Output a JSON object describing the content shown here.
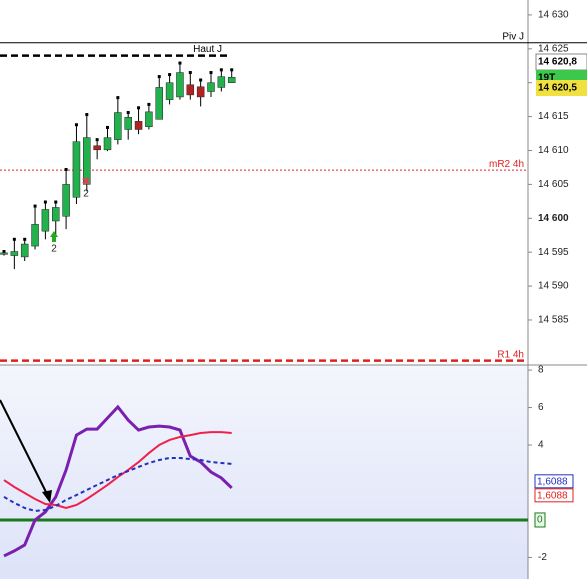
{
  "chart_data": [
    {
      "type": "candlestick",
      "up_color": "#22b14c",
      "down_color": "#b22222",
      "open": [
        14594.9,
        14594.5,
        14594.3,
        14595.9,
        14598.1,
        14599.6,
        14600.3,
        14603.1,
        14605,
        14610.7,
        14610.1,
        14611.6,
        14613.1,
        14614.3,
        14613.5,
        14614.6,
        14617.5,
        14617.9,
        14619.7,
        14619.4,
        14618.7,
        14619.3,
        14620
      ],
      "high": [
        14595.1,
        14596.9,
        14596.9,
        14601.8,
        14602.4,
        14602.4,
        14607.2,
        14613.8,
        14615.3,
        14611.6,
        14613.4,
        14617.8,
        14615.6,
        14616.3,
        14616.8,
        14620.9,
        14621.2,
        14622.9,
        14621.5,
        14620.4,
        14621.5,
        14621.9,
        14621.9
      ],
      "low": [
        14594.5,
        14592.5,
        14593.7,
        14595.4,
        14596.9,
        14597.6,
        14598.4,
        14602.1,
        14604,
        14608.7,
        14609.9,
        14610.9,
        14611.6,
        14612.4,
        14613.1,
        14614.6,
        14616.8,
        14617.5,
        14617.5,
        14616.5,
        14617.9,
        14618.7,
        14620
      ],
      "close": [
        14594.9,
        14595.1,
        14596.2,
        14599.1,
        14601.3,
        14601.6,
        14605,
        14611.3,
        14611.9,
        14610.1,
        14611.9,
        14615.6,
        14614.9,
        14613.1,
        14615.7,
        14619.3,
        14620,
        14621.5,
        14618.2,
        14617.9,
        14620,
        14620.9,
        14620.8
      ],
      "ylim": [
        14578.8,
        14632.2
      ],
      "yticks": [
        {
          "value": 14585,
          "label": "14 585"
        },
        {
          "value": 14590,
          "label": "14 590"
        },
        {
          "value": 14595,
          "label": "14 595"
        },
        {
          "value": 14600,
          "label": "14 600",
          "bold": true
        },
        {
          "value": 14605,
          "label": "14 605"
        },
        {
          "value": 14610,
          "label": "14 610"
        },
        {
          "value": 14615,
          "label": "14 615"
        },
        {
          "value": 14620,
          "label": "14 620"
        },
        {
          "value": 14625,
          "label": "14 625"
        },
        {
          "value": 14630,
          "label": "14 630"
        }
      ],
      "levels": [
        {
          "label": "Piv J",
          "value": 14625.9,
          "color": "#000000",
          "style": "solid"
        },
        {
          "label": "Haut J",
          "value": 14624,
          "color": "#000000",
          "style": "dashed"
        },
        {
          "label": "mR2 4h",
          "value": 14607.1,
          "color": "#e02020",
          "style": "dotted"
        },
        {
          "label": "R1 4h",
          "value": 14579,
          "color": "#e02020",
          "style": "dashed"
        }
      ],
      "annotations": [
        "2",
        "2"
      ],
      "price_tags": [
        {
          "value": 14620.8,
          "label": "14 620,8",
          "color": "#ffffff"
        },
        {
          "label": "19T",
          "color": "#3cc84a"
        },
        {
          "value": 14620.5,
          "label": "14 620,5",
          "color": "#f0e040"
        }
      ]
    },
    {
      "type": "line",
      "series": [
        {
          "color": "#7a20b0",
          "values": [
            -1.92,
            -1.65,
            -1.33,
            0,
            0.43,
            1.23,
            2.67,
            4.53,
            4.85,
            4.85,
            5.44,
            6.03,
            5.33,
            4.8,
            4.96,
            5.01,
            4.96,
            4.8,
            3.41,
            3.09,
            2.56,
            2.24,
            1.71
          ]
        },
        {
          "color": "#f0204a",
          "values": [
            2.13,
            1.76,
            1.44,
            1.12,
            0.85,
            0.8,
            0.64,
            0.8,
            1.12,
            1.49,
            1.87,
            2.29,
            2.67,
            3.09,
            3.57,
            4.0,
            4.27,
            4.43,
            4.53,
            4.64,
            4.69,
            4.69,
            4.64
          ]
        },
        {
          "color": "#2030c0",
          "dashed": true,
          "values": [
            1.23,
            0.91,
            0.64,
            0.48,
            0.53,
            0.75,
            1.07,
            1.33,
            1.6,
            1.87,
            2.13,
            2.4,
            2.61,
            2.83,
            3.04,
            3.2,
            3.31,
            3.31,
            3.25,
            3.2,
            3.09,
            3.04,
            2.99
          ]
        }
      ],
      "ylim": [
        -3.15,
        8.27
      ],
      "yticks": [
        -2,
        4,
        6,
        8
      ],
      "zero_line": {
        "value": 0,
        "label": "0",
        "color": "#1a7a1a"
      },
      "value_tags": [
        {
          "value": 1.6088,
          "label": "1,6088",
          "color": "#2030c0"
        },
        {
          "value": 1.6088,
          "label": "1,6088",
          "color": "#e02020"
        }
      ]
    }
  ]
}
